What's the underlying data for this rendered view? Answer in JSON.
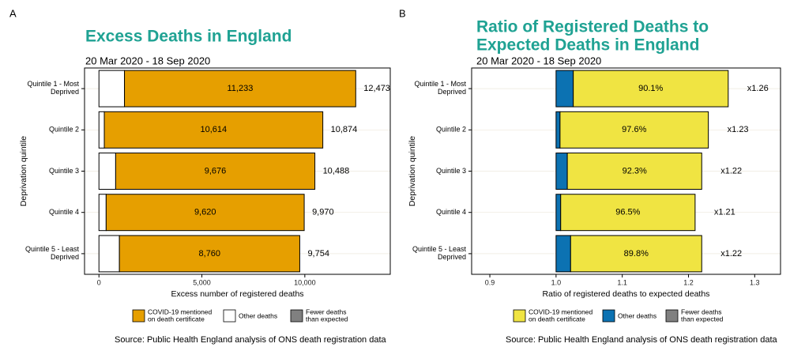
{
  "chart_data": [
    {
      "type": "bar",
      "orientation": "horizontal",
      "stacked": true,
      "panel": "A",
      "title": "Excess Deaths in England",
      "subtitle": "20 Mar 2020 - 18 Sep 2020",
      "categories": [
        "Quintile 1 - Most\nDeprived",
        "Quintile 2",
        "Quintile 3",
        "Quintile 4",
        "Quintile 5 - Least\nDeprived"
      ],
      "series": [
        {
          "name": "Other deaths",
          "color": "#ffffff",
          "values": [
            1240,
            260,
            812,
            350,
            994
          ]
        },
        {
          "name": "COVID-19 mentioned\non death certificate",
          "color": "#e69f00",
          "values": [
            11233,
            10614,
            9676,
            9620,
            8760
          ],
          "value_labels": [
            "11,233",
            "10,614",
            "9,676",
            "9,620",
            "8,760"
          ]
        },
        {
          "name": "Fewer deaths\nthan expected",
          "color": "#808080",
          "values": [
            null,
            null,
            null,
            null,
            null
          ]
        }
      ],
      "legend_order": [
        1,
        0,
        2
      ],
      "totals": [
        12473,
        10874,
        10488,
        9970,
        9754
      ],
      "total_labels": [
        "12,473",
        "10,874",
        "10,488",
        "9,970",
        "9,754"
      ],
      "xlim": [
        -700,
        14150
      ],
      "xticks": [
        0,
        {
          "value": 5000,
          "label": "5,000"
        },
        {
          "value": 10000,
          "label": "10,000"
        }
      ],
      "xlabel": "Excess number of registered deaths",
      "ylabel": "Deprivation quintile",
      "source": "Source: Public Health England analysis of ONS death registration data"
    },
    {
      "type": "bar",
      "orientation": "horizontal",
      "stacked": true,
      "panel": "B",
      "title": "Ratio of Registered Deaths to\nExpected Deaths in England",
      "subtitle": "20 Mar 2020 - 18 Sep 2020",
      "categories": [
        "Quintile 1 - Most\nDeprived",
        "Quintile 2",
        "Quintile 3",
        "Quintile 4",
        "Quintile 5 - Least\nDeprived"
      ],
      "base": 1,
      "series": [
        {
          "name": "Other deaths",
          "color": "#0c72b2",
          "values": [
            0.026,
            0.006,
            0.017,
            0.007,
            0.022
          ]
        },
        {
          "name": "COVID-19 mentioned\non death certificate",
          "color": "#f0e442",
          "values": [
            0.234,
            0.224,
            0.203,
            0.203,
            0.198
          ],
          "value_labels": [
            "90.1%",
            "97.6%",
            "92.3%",
            "96.5%",
            "89.8%"
          ]
        },
        {
          "name": "Fewer deaths\nthan expected",
          "color": "#808080",
          "values": [
            null,
            null,
            null,
            null,
            null
          ]
        }
      ],
      "legend_order": [
        1,
        0,
        2
      ],
      "totals": [
        1.26,
        1.23,
        1.22,
        1.21,
        1.22
      ],
      "total_labels": [
        "x1.26",
        "x1.23",
        "x1.22",
        "x1.21",
        "x1.22"
      ],
      "xlim": [
        0.8725,
        1.339
      ],
      "xticks": [
        0.9,
        {
          "value": 1.0,
          "label": "1.0"
        },
        1.1,
        1.2,
        1.3
      ],
      "xlabel": "Ratio of registered deaths to expected deaths",
      "ylabel": "Deprivation quintile",
      "source": "Source: Public Health England analysis of ONS death registration data"
    }
  ]
}
